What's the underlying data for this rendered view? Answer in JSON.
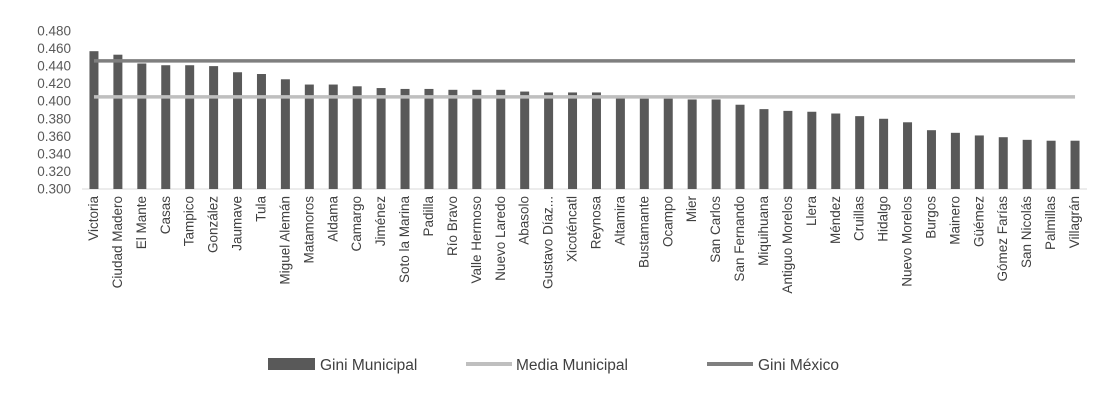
{
  "chart_data": {
    "type": "bar",
    "title": "",
    "xlabel": "",
    "ylabel": "",
    "ylim": [
      0.3,
      0.48
    ],
    "yticks": [
      "0.300",
      "0.320",
      "0.340",
      "0.360",
      "0.380",
      "0.400",
      "0.420",
      "0.440",
      "0.460",
      "0.480"
    ],
    "grid": false,
    "legend_position": "bottom",
    "categories": [
      "Victoria",
      "Ciudad Madero",
      "El Mante",
      "Casas",
      "Tampico",
      "González",
      "Jaumave",
      "Tula",
      "Miguel Alemán",
      "Matamoros",
      "Aldama",
      "Camargo",
      "Jiménez",
      "Soto la Marina",
      "Padilla",
      "Río Bravo",
      "Valle Hermoso",
      "Nuevo Laredo",
      "Abasolo",
      "Gustavo Díaz...",
      "Xicoténcatl",
      "Reynosa",
      "Altamira",
      "Bustamante",
      "Ocampo",
      "Mier",
      "San Carlos",
      "San Fernando",
      "Miquihuana",
      "Antiguo Morelos",
      "Llera",
      "Méndez",
      "Cruillas",
      "Hidalgo",
      "Nuevo Morelos",
      "Burgos",
      "Mainero",
      "Güémez",
      "Gómez Farías",
      "San Nicolás",
      "Palmillas",
      "Villagrán"
    ],
    "series": [
      {
        "name": "Gini Municipal",
        "kind": "bar",
        "color": "#595959",
        "values": [
          0.457,
          0.453,
          0.443,
          0.441,
          0.441,
          0.44,
          0.433,
          0.431,
          0.425,
          0.419,
          0.419,
          0.417,
          0.415,
          0.414,
          0.414,
          0.413,
          0.413,
          0.413,
          0.411,
          0.41,
          0.41,
          0.41,
          0.405,
          0.403,
          0.403,
          0.402,
          0.402,
          0.396,
          0.391,
          0.389,
          0.388,
          0.386,
          0.383,
          0.38,
          0.376,
          0.367,
          0.364,
          0.361,
          0.359,
          0.356,
          0.355,
          0.355
        ]
      },
      {
        "name": "Media Municipal",
        "kind": "line",
        "color": "#bfbfbf",
        "value": 0.405
      },
      {
        "name": "Gini México",
        "kind": "line",
        "color": "#7f7f7f",
        "value": 0.446
      }
    ]
  }
}
